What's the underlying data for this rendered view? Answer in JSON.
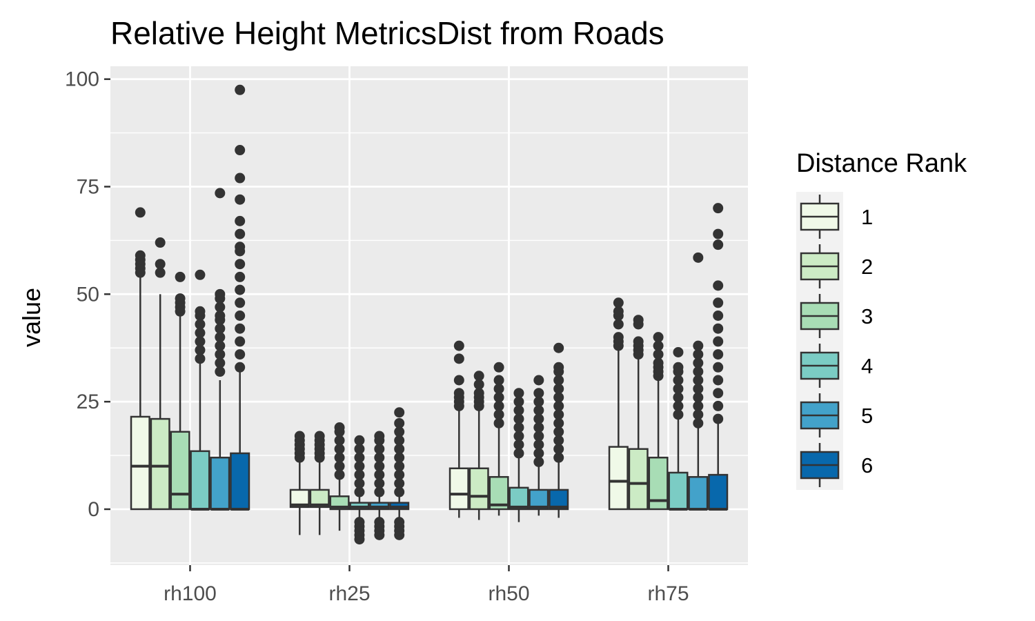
{
  "chart_data": {
    "type": "box",
    "title": "Relative Height MetricsDist from Roads",
    "xlabel": "",
    "ylabel": "value",
    "ylim": [
      -13,
      103
    ],
    "yticks": [
      0,
      25,
      50,
      75,
      100
    ],
    "grid": true,
    "legend": {
      "title": "Distance Rank",
      "placement": "right",
      "entries": [
        "1",
        "2",
        "3",
        "4",
        "5",
        "6"
      ],
      "colors": [
        "#f0f9e8",
        "#ccebc5",
        "#a8ddb5",
        "#7bccc4",
        "#43a2ca",
        "#0868ac"
      ]
    },
    "categories": [
      "rh100",
      "rh25",
      "rh50",
      "rh75"
    ],
    "series": [
      {
        "name": "1",
        "color": "#f0f9e8",
        "boxes": [
          {
            "q1": 0,
            "median": 10,
            "q3": 21.5,
            "whisker_low": 0,
            "whisker_high": 54,
            "outliers": [
              55,
              56,
              57,
              58,
              59,
              69
            ]
          },
          {
            "q1": 0.5,
            "median": 1,
            "q3": 4.5,
            "whisker_low": -6,
            "whisker_high": 11,
            "outliers": [
              12,
              13,
              14,
              15,
              16,
              17
            ]
          },
          {
            "q1": 0,
            "median": 3.5,
            "q3": 9.5,
            "whisker_low": -2,
            "whisker_high": 23,
            "outliers": [
              24,
              25,
              26,
              27,
              30,
              35,
              38
            ]
          },
          {
            "q1": 0,
            "median": 6.5,
            "q3": 14.5,
            "whisker_low": 0,
            "whisker_high": 37,
            "outliers": [
              38,
              39,
              40,
              43,
              45,
              46,
              48
            ]
          }
        ]
      },
      {
        "name": "2",
        "color": "#ccebc5",
        "boxes": [
          {
            "q1": 0,
            "median": 10,
            "q3": 21,
            "whisker_low": 0,
            "whisker_high": 50,
            "outliers": [
              55,
              57,
              62
            ]
          },
          {
            "q1": 0.5,
            "median": 1,
            "q3": 4.5,
            "whisker_low": -6,
            "whisker_high": 11,
            "outliers": [
              12,
              13,
              14,
              15,
              16,
              17
            ]
          },
          {
            "q1": 0,
            "median": 3,
            "q3": 9.5,
            "whisker_low": -2.5,
            "whisker_high": 23,
            "outliers": [
              24,
              25,
              26,
              27,
              29,
              31
            ]
          },
          {
            "q1": 0,
            "median": 6,
            "q3": 14,
            "whisker_low": 0,
            "whisker_high": 35,
            "outliers": [
              36,
              37,
              38,
              39,
              43,
              44
            ]
          }
        ]
      },
      {
        "name": "3",
        "color": "#a8ddb5",
        "boxes": [
          {
            "q1": 0,
            "median": 3.5,
            "q3": 18,
            "whisker_low": 0,
            "whisker_high": 45,
            "outliers": [
              46,
              47,
              48,
              49,
              54
            ]
          },
          {
            "q1": 0,
            "median": 0.5,
            "q3": 3,
            "whisker_low": -5,
            "whisker_high": 7,
            "outliers": [
              8,
              10,
              12,
              14,
              16,
              18,
              19
            ]
          },
          {
            "q1": 0,
            "median": 1,
            "q3": 7.5,
            "whisker_low": -1.5,
            "whisker_high": 19,
            "outliers": [
              20,
              22,
              24,
              26,
              28,
              30,
              33
            ]
          },
          {
            "q1": 0,
            "median": 2,
            "q3": 12,
            "whisker_low": 0,
            "whisker_high": 30,
            "outliers": [
              31,
              32,
              33,
              34,
              36,
              38,
              40
            ]
          }
        ]
      },
      {
        "name": "4",
        "color": "#7bccc4",
        "boxes": [
          {
            "q1": 0,
            "median": 0,
            "q3": 13.5,
            "whisker_low": 0,
            "whisker_high": 34,
            "outliers": [
              35,
              37,
              39,
              41,
              43,
              45,
              46,
              54.5
            ]
          },
          {
            "q1": 0,
            "median": 0.5,
            "q3": 1.5,
            "whisker_low": -2,
            "whisker_high": 3,
            "outliers": [
              -7,
              -6,
              -5,
              -4,
              -3,
              4,
              6,
              8,
              10,
              12,
              14,
              16
            ]
          },
          {
            "q1": 0,
            "median": 0.5,
            "q3": 5,
            "whisker_low": -3,
            "whisker_high": 12,
            "outliers": [
              13,
              15,
              17,
              19,
              21,
              23,
              25,
              27
            ]
          },
          {
            "q1": 0,
            "median": 0,
            "q3": 8.5,
            "whisker_low": 0,
            "whisker_high": 21,
            "outliers": [
              22,
              24,
              26,
              28,
              30,
              32,
              33,
              36.5
            ]
          }
        ]
      },
      {
        "name": "5",
        "color": "#43a2ca",
        "boxes": [
          {
            "q1": 0,
            "median": 0,
            "q3": 12,
            "whisker_low": 0,
            "whisker_high": 30,
            "outliers": [
              32,
              34,
              36,
              38,
              40,
              42,
              44,
              45,
              47,
              49,
              50,
              73.5
            ]
          },
          {
            "q1": 0,
            "median": 0.5,
            "q3": 1.5,
            "whisker_low": -2,
            "whisker_high": 3,
            "outliers": [
              -6,
              -5,
              -4,
              -3,
              4,
              6,
              8,
              10,
              12,
              14,
              16,
              17
            ]
          },
          {
            "q1": 0,
            "median": 0.5,
            "q3": 4.5,
            "whisker_low": -1.5,
            "whisker_high": 10,
            "outliers": [
              11,
              13,
              15,
              17,
              19,
              21,
              23,
              25,
              27,
              30
            ]
          },
          {
            "q1": 0,
            "median": 0,
            "q3": 7.5,
            "whisker_low": 0,
            "whisker_high": 19,
            "outliers": [
              20,
              22,
              24,
              26,
              28,
              30,
              32,
              34,
              36,
              38,
              58.5
            ]
          }
        ]
      },
      {
        "name": "6",
        "color": "#0868ac",
        "boxes": [
          {
            "q1": 0,
            "median": 0,
            "q3": 13,
            "whisker_low": 0,
            "whisker_high": 32,
            "outliers": [
              33,
              36,
              39,
              42,
              45,
              48,
              51,
              54,
              57,
              60,
              61,
              64,
              67,
              72,
              77,
              83.5,
              97.5
            ]
          },
          {
            "q1": 0,
            "median": 0.5,
            "q3": 1.5,
            "whisker_low": -2,
            "whisker_high": 3,
            "outliers": [
              -6,
              -5,
              -4,
              -3,
              4,
              6,
              8,
              10,
              12,
              14,
              16,
              18,
              20,
              22.5
            ]
          },
          {
            "q1": 0,
            "median": 0.5,
            "q3": 4.5,
            "whisker_low": -2,
            "whisker_high": 11,
            "outliers": [
              12,
              14,
              16,
              18,
              20,
              22,
              24,
              26,
              28,
              30,
              32,
              33,
              37.5
            ]
          },
          {
            "q1": 0,
            "median": 0,
            "q3": 8,
            "whisker_low": 0,
            "whisker_high": 20,
            "outliers": [
              21,
              24,
              27,
              30,
              33,
              36,
              39,
              42,
              45,
              48,
              52,
              61.5,
              64,
              70
            ]
          }
        ]
      }
    ]
  }
}
